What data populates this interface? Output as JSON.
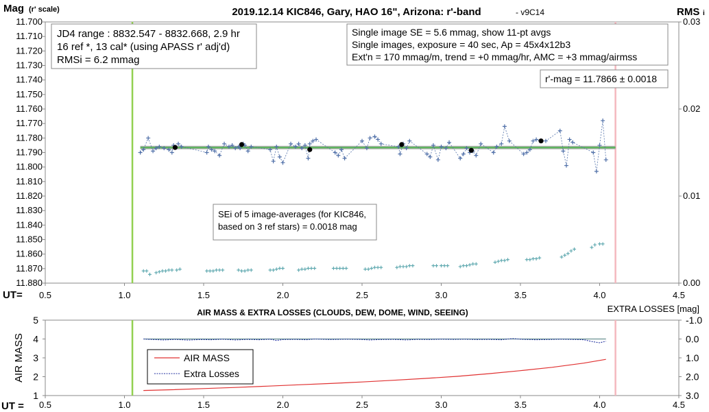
{
  "chart_data": [
    {
      "type": "scatter",
      "title": "2019.12.14 KIC846, Gary, HAO 16\", Arizona: r'-band",
      "version": "- v9C14",
      "ylabel": "Mag",
      "ylabel_sub": "(r' scale)",
      "y2label": "RMS",
      "y2label_sub": "i",
      "xlabel": "UT=",
      "xlim": [
        0.5,
        4.5
      ],
      "ylim": [
        11.88,
        11.7
      ],
      "y2lim": [
        0.0,
        0.03
      ],
      "x_ticks": [
        "0.5",
        "1.0",
        "1.5",
        "2.0",
        "2.5",
        "3.0",
        "3.5",
        "4.0",
        "4.5"
      ],
      "y_ticks": [
        "11.700",
        "11.710",
        "11.720",
        "11.730",
        "11.740",
        "11.750",
        "11.760",
        "11.770",
        "11.780",
        "11.790",
        "11.800",
        "11.810",
        "11.820",
        "11.830",
        "11.840",
        "11.850",
        "11.860",
        "11.870",
        "11.880"
      ],
      "y2_ticks": [
        "0.03",
        "0.02",
        "0.01",
        "0.00"
      ],
      "vertical_lines": [
        {
          "x": 1.05,
          "color": "#92d050"
        },
        {
          "x": 4.1,
          "color": "#f4b8be"
        }
      ],
      "colors": {
        "series": "#4f6fa8",
        "averages": "#000000",
        "rms": "#5aa6ad",
        "fit_green": "#5fb45f",
        "fit_grey": "#b0b0b0"
      },
      "annotations": {
        "box1": [
          "JD4 range : 8832.547 - 8832.668,  2.9  hr",
          "16 ref *, 13 cal* (using APASS r' adj'd)",
          "RMSi = 6.2 mmag"
        ],
        "box2": [
          "Single image SE = 5.6 mmag, show  11-pt avgs",
          "Single images, exposure = 40 sec, Ap = 45x4x12b3",
          "Ext'n = 170 mmag/m, trend =  +0 mmag/hr, AMC = +3 mmag/airmss"
        ],
        "box3": "r'-mag = 11.7866 ± 0.0018",
        "box4": [
          "SEi of 5 image-averages (for KIC846,",
          "based on 3 ref stars) = 0.0018 mag"
        ]
      },
      "fit_line": {
        "x": [
          1.1,
          4.1
        ],
        "y": [
          11.7866,
          11.7866
        ]
      },
      "averages": {
        "x": [
          1.32,
          1.74,
          2.17,
          2.75,
          3.19,
          3.63
        ],
        "y": [
          11.7865,
          11.7845,
          11.788,
          11.7845,
          11.7885,
          11.782
        ]
      },
      "series": [
        {
          "name": "single images",
          "x": [
            1.1,
            1.12,
            1.15,
            1.18,
            1.2,
            1.22,
            1.25,
            1.28,
            1.3,
            1.31,
            1.32,
            1.34,
            1.36,
            1.52,
            1.53,
            1.55,
            1.57,
            1.6,
            1.63,
            1.66,
            1.68,
            1.7,
            1.72,
            1.73,
            1.75,
            1.76,
            1.78,
            1.8,
            1.92,
            1.94,
            1.96,
            1.98,
            2.0,
            2.05,
            2.08,
            2.1,
            2.12,
            2.14,
            2.16,
            2.17,
            2.19,
            2.21,
            2.33,
            2.35,
            2.37,
            2.39,
            2.5,
            2.53,
            2.55,
            2.58,
            2.6,
            2.62,
            2.73,
            2.74,
            2.76,
            2.78,
            2.8,
            2.91,
            2.93,
            2.95,
            2.98,
            3.0,
            3.03,
            3.05,
            3.12,
            3.14,
            3.16,
            3.18,
            3.2,
            3.22,
            3.25,
            3.33,
            3.35,
            3.38,
            3.4,
            3.43,
            3.52,
            3.54,
            3.56,
            3.58,
            3.6,
            3.63,
            3.66,
            3.75,
            3.77,
            3.79,
            3.81,
            3.83,
            3.96,
            3.98,
            4.0,
            4.02,
            4.04
          ],
          "y": [
            11.79,
            11.788,
            11.78,
            11.789,
            11.787,
            11.786,
            11.787,
            11.788,
            11.79,
            11.785,
            11.786,
            11.784,
            11.786,
            11.79,
            11.786,
            11.788,
            11.789,
            11.792,
            11.784,
            11.786,
            11.785,
            11.787,
            11.786,
            11.787,
            11.784,
            11.785,
            11.789,
            11.786,
            11.788,
            11.796,
            11.786,
            11.793,
            11.797,
            11.784,
            11.786,
            11.784,
            11.787,
            11.785,
            11.794,
            11.784,
            11.782,
            11.781,
            11.79,
            11.792,
            11.788,
            11.794,
            11.782,
            11.787,
            11.78,
            11.779,
            11.781,
            11.784,
            11.786,
            11.791,
            11.784,
            11.787,
            11.782,
            11.791,
            11.793,
            11.785,
            11.795,
            11.786,
            11.787,
            11.783,
            11.794,
            11.791,
            11.787,
            11.79,
            11.789,
            11.792,
            11.784,
            11.79,
            11.786,
            11.784,
            11.772,
            11.782,
            11.791,
            11.79,
            11.788,
            11.782,
            11.781,
            11.782,
            11.782,
            11.775,
            11.789,
            11.799,
            11.781,
            11.783,
            11.79,
            11.803,
            11.785,
            11.768,
            11.795
          ]
        },
        {
          "name": "RMSi",
          "x": [
            1.12,
            1.14,
            1.16,
            1.2,
            1.22,
            1.24,
            1.26,
            1.28,
            1.3,
            1.33,
            1.35,
            1.52,
            1.54,
            1.56,
            1.58,
            1.6,
            1.62,
            1.72,
            1.74,
            1.76,
            1.78,
            1.8,
            1.92,
            1.94,
            1.96,
            1.98,
            2.0,
            2.1,
            2.12,
            2.14,
            2.16,
            2.18,
            2.2,
            2.32,
            2.34,
            2.36,
            2.38,
            2.4,
            2.52,
            2.54,
            2.56,
            2.58,
            2.6,
            2.62,
            2.72,
            2.74,
            2.76,
            2.78,
            2.8,
            2.82,
            2.95,
            2.97,
            3.0,
            3.02,
            3.04,
            3.12,
            3.14,
            3.16,
            3.18,
            3.2,
            3.22,
            3.34,
            3.36,
            3.38,
            3.4,
            3.42,
            3.54,
            3.56,
            3.58,
            3.6,
            3.62,
            3.76,
            3.78,
            3.8,
            3.82,
            3.84,
            3.95,
            3.97,
            4.0,
            4.02
          ],
          "y": [
            0.0014,
            0.0014,
            0.001,
            0.0012,
            0.0013,
            0.0014,
            0.0014,
            0.0015,
            0.0015,
            0.0015,
            0.0016,
            0.0014,
            0.0014,
            0.0014,
            0.0015,
            0.0015,
            0.0015,
            0.0015,
            0.0014,
            0.0014,
            0.0015,
            0.0015,
            0.0015,
            0.0015,
            0.0016,
            0.0017,
            0.0017,
            0.0015,
            0.0016,
            0.0016,
            0.0017,
            0.0017,
            0.0017,
            0.0017,
            0.0017,
            0.0017,
            0.0017,
            0.0017,
            0.0016,
            0.0016,
            0.0017,
            0.0018,
            0.0018,
            0.0018,
            0.0018,
            0.0019,
            0.0019,
            0.0019,
            0.002,
            0.002,
            0.002,
            0.002,
            0.002,
            0.002,
            0.002,
            0.0019,
            0.002,
            0.002,
            0.0021,
            0.0022,
            0.0022,
            0.0024,
            0.0025,
            0.0026,
            0.0026,
            0.0027,
            0.0027,
            0.0027,
            0.0028,
            0.0028,
            0.0029,
            0.003,
            0.0032,
            0.0034,
            0.0037,
            0.0039,
            0.0041,
            0.0044,
            0.0045,
            0.0045
          ]
        }
      ]
    },
    {
      "type": "line",
      "title": "AIR MASS & EXTRA LOSSES (CLOUDS, DEW, DOME, WIND, SEEING)",
      "ylabel": "AIR MASS",
      "y2label": "EXTRA LOSSES [mag]",
      "xlabel": "UT =",
      "xlim": [
        0.5,
        4.5
      ],
      "ylim": [
        1,
        5
      ],
      "y2lim": [
        -1.0,
        3.0
      ],
      "x_ticks": [
        "0.5",
        "1.0",
        "1.5",
        "2.0",
        "2.5",
        "3.0",
        "3.5",
        "4.0",
        "4.5"
      ],
      "y_ticks": [
        "5",
        "4",
        "3",
        "2",
        "1"
      ],
      "y2_ticks": [
        "-1.0",
        "0.0",
        "1.0",
        "2.0",
        "3.0"
      ],
      "vertical_lines": [
        {
          "x": 1.05,
          "color": "#92d050"
        },
        {
          "x": 4.1,
          "color": "#f4b8be"
        }
      ],
      "colors": {
        "air_mass": "#e03030",
        "extra_losses": "#1f2f9f",
        "zero_line": "#4a7a7a"
      },
      "series": [
        {
          "name": "AIR MASS",
          "x": [
            1.12,
            1.3,
            1.5,
            1.7,
            1.9,
            2.1,
            2.3,
            2.5,
            2.7,
            2.9,
            3.1,
            3.3,
            3.5,
            3.7,
            3.9,
            4.04
          ],
          "y": [
            1.27,
            1.31,
            1.37,
            1.43,
            1.5,
            1.57,
            1.64,
            1.72,
            1.81,
            1.91,
            2.02,
            2.16,
            2.32,
            2.5,
            2.72,
            2.92
          ]
        },
        {
          "name": "Extra Losses",
          "x": [
            1.12,
            1.18,
            1.25,
            1.32,
            1.4,
            1.48,
            1.55,
            1.62,
            1.7,
            1.78,
            1.85,
            1.92,
            1.96,
            2.0,
            2.08,
            2.15,
            2.2,
            2.3,
            2.4,
            2.48,
            2.55,
            2.62,
            2.7,
            2.78,
            2.85,
            2.92,
            3.0,
            3.08,
            3.15,
            3.22,
            3.3,
            3.38,
            3.45,
            3.52,
            3.6,
            3.68,
            3.75,
            3.82,
            3.9,
            3.96,
            4.0,
            4.04
          ],
          "y": [
            0.0,
            0.03,
            0.05,
            0.02,
            0.06,
            0.03,
            0.04,
            0.01,
            0.05,
            0.02,
            0.04,
            0.01,
            0.08,
            0.03,
            0.02,
            0.04,
            0.0,
            0.03,
            0.01,
            0.02,
            0.05,
            0.03,
            0.02,
            0.05,
            0.02,
            0.03,
            0.01,
            0.02,
            0.01,
            0.03,
            0.02,
            0.04,
            -0.02,
            0.02,
            0.04,
            0.03,
            0.01,
            0.02,
            0.04,
            0.15,
            0.2,
            0.12
          ],
          "zero_line": 0.0
        }
      ]
    }
  ]
}
